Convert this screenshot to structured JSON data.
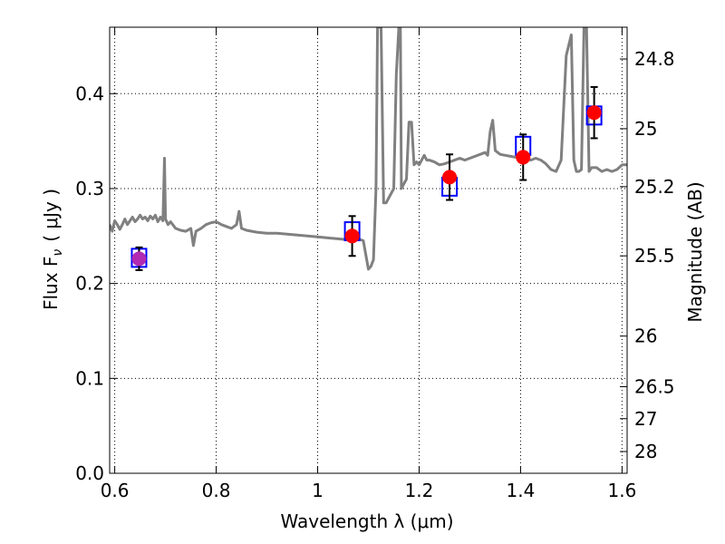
{
  "chart_data": {
    "type": "line",
    "xlabel": "Wavelength  λ (μm)",
    "ylabel": "Flux  F",
    "ylabel_sub": "ν",
    "ylabel_units": "( μJy )",
    "y2label": "Magnitude (AB)",
    "xlim": [
      0.59,
      1.61
    ],
    "ylim": [
      0.0,
      0.47
    ],
    "grid": true,
    "grid_style": "dotted",
    "x_ticks": [
      0.6,
      0.8,
      1.0,
      1.2,
      1.4,
      1.6
    ],
    "x_tick_labels": [
      "0.6",
      "0.8",
      "1",
      "1.2",
      "1.4",
      "1.6"
    ],
    "y_ticks": [
      0.0,
      0.1,
      0.2,
      0.3,
      0.4
    ],
    "y_tick_labels": [
      "0.0",
      "0.1",
      "0.2",
      "0.3",
      "0.4"
    ],
    "mag_ticks": [
      24.8,
      25,
      25.2,
      25.5,
      26,
      26.5,
      27,
      28
    ],
    "mag_tick_labels": [
      "24.8",
      "25",
      "25.2",
      "25.5",
      "26",
      "26.5",
      "27",
      "28"
    ],
    "colors": {
      "spectrum": "#808080",
      "observed": "#ff0000",
      "observed_first": "#b22ab2",
      "model_box": "#0000ff",
      "errorbar": "#000000"
    },
    "spectrum": {
      "x": [
        0.59,
        0.595,
        0.6,
        0.605,
        0.61,
        0.615,
        0.62,
        0.625,
        0.63,
        0.635,
        0.64,
        0.645,
        0.65,
        0.655,
        0.66,
        0.665,
        0.67,
        0.675,
        0.68,
        0.685,
        0.69,
        0.695,
        0.698,
        0.7,
        0.705,
        0.71,
        0.72,
        0.73,
        0.74,
        0.75,
        0.755,
        0.76,
        0.77,
        0.78,
        0.79,
        0.8,
        0.81,
        0.82,
        0.83,
        0.84,
        0.845,
        0.85,
        0.86,
        0.88,
        0.9,
        0.92,
        0.94,
        0.96,
        0.98,
        1.0,
        1.02,
        1.04,
        1.06,
        1.08,
        1.09,
        1.095,
        1.1,
        1.105,
        1.11,
        1.115,
        1.118,
        1.125,
        1.13,
        1.135,
        1.14,
        1.15,
        1.155,
        1.16,
        1.163,
        1.165,
        1.17,
        1.175,
        1.18,
        1.185,
        1.19,
        1.195,
        1.2,
        1.205,
        1.21,
        1.215,
        1.22,
        1.23,
        1.24,
        1.25,
        1.26,
        1.27,
        1.28,
        1.29,
        1.3,
        1.31,
        1.32,
        1.33,
        1.335,
        1.34,
        1.345,
        1.35,
        1.36,
        1.37,
        1.38,
        1.39,
        1.4,
        1.41,
        1.42,
        1.43,
        1.44,
        1.45,
        1.46,
        1.47,
        1.48,
        1.49,
        1.5,
        1.505,
        1.51,
        1.515,
        1.52,
        1.525,
        1.53,
        1.535,
        1.54,
        1.55,
        1.56,
        1.57,
        1.58,
        1.59,
        1.6,
        1.61
      ],
      "y": [
        0.262,
        0.255,
        0.266,
        0.262,
        0.257,
        0.262,
        0.268,
        0.262,
        0.266,
        0.27,
        0.265,
        0.268,
        0.272,
        0.268,
        0.27,
        0.266,
        0.271,
        0.268,
        0.272,
        0.265,
        0.27,
        0.266,
        0.332,
        0.268,
        0.262,
        0.265,
        0.258,
        0.256,
        0.255,
        0.258,
        0.24,
        0.255,
        0.258,
        0.262,
        0.264,
        0.265,
        0.262,
        0.26,
        0.258,
        0.262,
        0.276,
        0.258,
        0.256,
        0.254,
        0.253,
        0.253,
        0.252,
        0.251,
        0.25,
        0.249,
        0.248,
        0.247,
        0.246,
        0.247,
        0.245,
        0.23,
        0.215,
        0.218,
        0.225,
        0.3,
        0.47,
        0.47,
        0.285,
        0.285,
        0.29,
        0.3,
        0.42,
        0.47,
        0.47,
        0.3,
        0.305,
        0.31,
        0.37,
        0.37,
        0.325,
        0.328,
        0.325,
        0.33,
        0.335,
        0.33,
        0.33,
        0.328,
        0.325,
        0.326,
        0.328,
        0.33,
        0.332,
        0.33,
        0.332,
        0.334,
        0.336,
        0.338,
        0.335,
        0.36,
        0.372,
        0.34,
        0.336,
        0.335,
        0.334,
        0.333,
        0.334,
        0.332,
        0.33,
        0.332,
        0.33,
        0.326,
        0.32,
        0.318,
        0.33,
        0.44,
        0.462,
        0.33,
        0.318,
        0.318,
        0.32,
        0.47,
        0.47,
        0.318,
        0.322,
        0.322,
        0.318,
        0.32,
        0.318,
        0.32,
        0.325,
        0.325
      ],
      "stroke_px": 3
    },
    "observed": {
      "x": [
        0.648,
        1.068,
        1.26,
        1.405,
        1.545
      ],
      "y": [
        0.226,
        0.25,
        0.312,
        0.333,
        0.38
      ],
      "err": [
        0.012,
        0.021,
        0.024,
        0.024,
        0.027
      ]
    },
    "model": {
      "x": [
        0.648,
        1.068,
        1.26,
        1.405,
        1.545
      ],
      "y": [
        0.227,
        0.255,
        0.302,
        0.345,
        0.377
      ]
    }
  }
}
